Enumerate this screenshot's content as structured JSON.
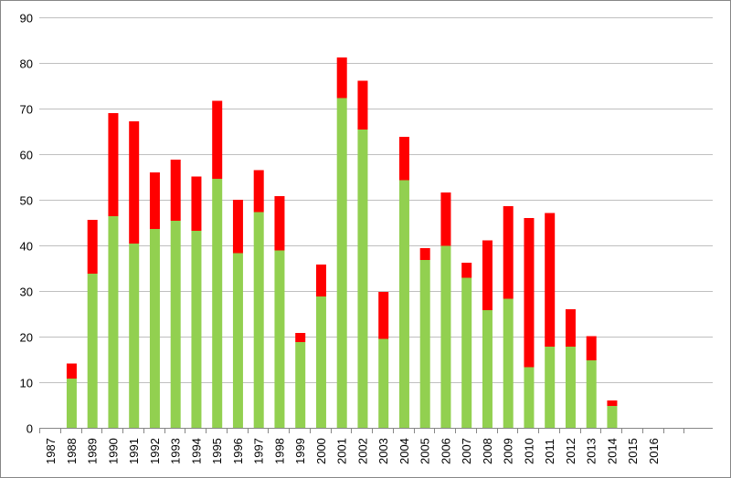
{
  "chart_data": {
    "type": "bar",
    "stacked": true,
    "title": "",
    "xlabel": "",
    "ylabel": "",
    "ylim": [
      0,
      90
    ],
    "yticks": [
      0,
      10,
      20,
      30,
      40,
      50,
      60,
      70,
      80,
      90
    ],
    "grid": true,
    "legend": "none",
    "categories": [
      "1987",
      "1988",
      "1989",
      "1990",
      "1991",
      "1992",
      "1993",
      "1994",
      "1995",
      "1996",
      "1997",
      "1998",
      "1999",
      "2000",
      "2001",
      "2002",
      "2003",
      "2004",
      "2005",
      "2006",
      "2007",
      "2008",
      "2009",
      "2010",
      "2011",
      "2012",
      "2013",
      "2014",
      "2015",
      "2016"
    ],
    "series": [
      {
        "color": "#92d050",
        "values": [
          0,
          10.8,
          33.8,
          46.4,
          40.4,
          43.6,
          45.4,
          43.2,
          54.6,
          38.3,
          47.3,
          38.9,
          18.8,
          28.8,
          72.3,
          65.4,
          19.5,
          54.3,
          36.8,
          39.9,
          32.9,
          25.8,
          28.3,
          13.3,
          17.8,
          17.8,
          14.8,
          4.8,
          0,
          0
        ]
      },
      {
        "color": "#ff0000",
        "values": [
          0,
          3.3,
          11.8,
          22.6,
          26.8,
          12.4,
          13.4,
          11.9,
          17.1,
          11.7,
          9.2,
          11.9,
          2.0,
          7.0,
          8.9,
          10.7,
          10.3,
          9.5,
          2.6,
          11.7,
          3.3,
          15.3,
          20.3,
          32.7,
          29.3,
          8.2,
          5.3,
          1.2,
          0,
          0
        ]
      }
    ]
  }
}
